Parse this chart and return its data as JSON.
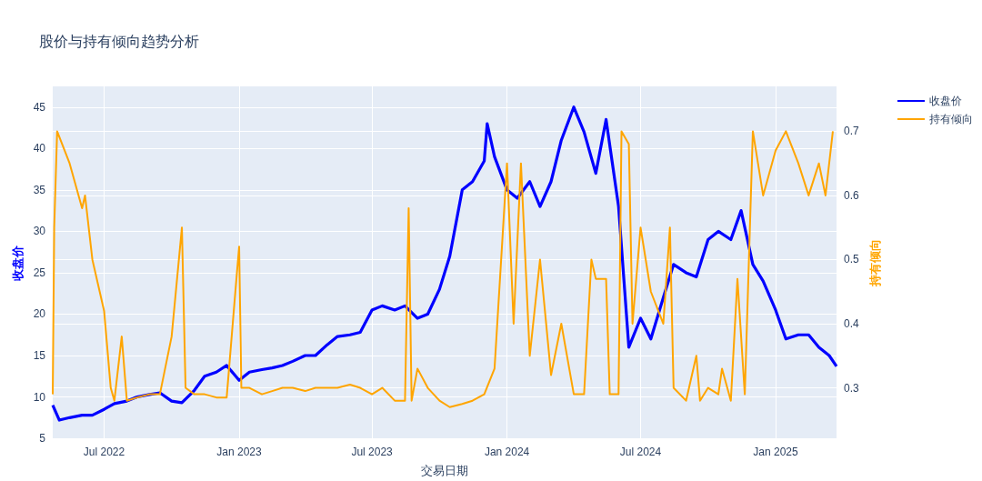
{
  "chart_data": {
    "type": "line",
    "title": "股价与持有倾向趋势分析",
    "xlabel": "交易日期",
    "ylabel": "收盘价",
    "y2label": "持有倾向",
    "xlim": [
      "2022-04-22",
      "2025-03-25"
    ],
    "xticks": [
      {
        "value": "2022-07-01",
        "label": "Jul 2022"
      },
      {
        "value": "2023-01-01",
        "label": "Jan 2023"
      },
      {
        "value": "2023-07-01",
        "label": "Jul 2023"
      },
      {
        "value": "2024-01-01",
        "label": "Jan 2024"
      },
      {
        "value": "2024-07-01",
        "label": "Jul 2024"
      },
      {
        "value": "2025-01-01",
        "label": "Jan 2025"
      }
    ],
    "ylim": [
      4.9,
      47.5
    ],
    "yticks": [
      5,
      10,
      15,
      20,
      25,
      30,
      35,
      40,
      45
    ],
    "y2lim": [
      0.22,
      0.77
    ],
    "y2ticks": [
      0.3,
      0.4,
      0.5,
      0.6,
      0.7
    ],
    "grid": true,
    "legend": "top right",
    "marker": "none",
    "line_style": "solid",
    "series": [
      {
        "name": "收盘价",
        "color": "#0000ff",
        "x": [
          "2022-04-22",
          "2022-05-01",
          "2022-05-15",
          "2022-06-01",
          "2022-06-15",
          "2022-07-01",
          "2022-07-15",
          "2022-08-01",
          "2022-08-15",
          "2022-09-01",
          "2022-09-15",
          "2022-10-01",
          "2022-10-15",
          "2022-11-01",
          "2022-11-15",
          "2022-12-01",
          "2022-12-15",
          "2023-01-01",
          "2023-01-15",
          "2023-02-01",
          "2023-02-15",
          "2023-03-01",
          "2023-03-15",
          "2023-04-01",
          "2023-04-15",
          "2023-05-01",
          "2023-05-15",
          "2023-06-01",
          "2023-06-15",
          "2023-07-01",
          "2023-07-15",
          "2023-08-01",
          "2023-08-15",
          "2023-09-01",
          "2023-09-15",
          "2023-10-01",
          "2023-10-15",
          "2023-11-01",
          "2023-11-15",
          "2023-12-01",
          "2023-12-05",
          "2023-12-15",
          "2024-01-01",
          "2024-01-15",
          "2024-02-01",
          "2024-02-15",
          "2024-03-01",
          "2024-03-15",
          "2024-04-01",
          "2024-04-15",
          "2024-05-01",
          "2024-05-15",
          "2024-06-01",
          "2024-06-15",
          "2024-07-01",
          "2024-07-15",
          "2024-08-01",
          "2024-08-15",
          "2024-09-01",
          "2024-09-15",
          "2024-10-01",
          "2024-10-15",
          "2024-11-01",
          "2024-11-15",
          "2024-12-01",
          "2024-12-15",
          "2025-01-01",
          "2025-01-15",
          "2025-02-01",
          "2025-02-15",
          "2025-03-01",
          "2025-03-15",
          "2025-03-25"
        ],
        "values": [
          9,
          7.2,
          7.5,
          7.8,
          7.8,
          8.5,
          9.2,
          9.5,
          10,
          10.3,
          10.5,
          9.5,
          9.3,
          10.8,
          12.5,
          13,
          13.8,
          12,
          13,
          13.3,
          13.5,
          13.8,
          14.3,
          15,
          15,
          16.3,
          17.3,
          17.5,
          17.8,
          20.5,
          21,
          20.5,
          21,
          19.5,
          20,
          23,
          27,
          35,
          36,
          38.5,
          43,
          39,
          35,
          34,
          36,
          33,
          36,
          41,
          45,
          42,
          37,
          43.5,
          33,
          16,
          19.5,
          17,
          22,
          26,
          25,
          24.5,
          29,
          30,
          29,
          32.5,
          26,
          24,
          20.5,
          17,
          17.5,
          17.5,
          16,
          15,
          13.7
        ]
      },
      {
        "name": "持有倾向",
        "color": "#ffa500",
        "axis": "y2",
        "x": [
          "2022-04-22",
          "2022-04-24",
          "2022-04-28",
          "2022-05-15",
          "2022-06-01",
          "2022-06-05",
          "2022-06-15",
          "2022-07-01",
          "2022-07-10",
          "2022-07-15",
          "2022-07-25",
          "2022-08-01",
          "2022-08-15",
          "2022-09-01",
          "2022-09-15",
          "2022-10-01",
          "2022-10-15",
          "2022-10-20",
          "2022-11-01",
          "2022-11-15",
          "2022-12-01",
          "2022-12-15",
          "2022-12-29",
          "2023-01-01",
          "2023-01-04",
          "2023-01-15",
          "2023-02-01",
          "2023-02-15",
          "2023-03-01",
          "2023-03-15",
          "2023-04-01",
          "2023-04-15",
          "2023-05-01",
          "2023-05-15",
          "2023-06-01",
          "2023-06-15",
          "2023-07-01",
          "2023-07-15",
          "2023-08-01",
          "2023-08-15",
          "2023-08-20",
          "2023-08-24",
          "2023-09-01",
          "2023-09-15",
          "2023-10-01",
          "2023-10-15",
          "2023-11-01",
          "2023-11-15",
          "2023-12-01",
          "2023-12-15",
          "2024-01-01",
          "2024-01-10",
          "2024-01-20",
          "2024-02-01",
          "2024-02-15",
          "2024-03-01",
          "2024-03-15",
          "2024-04-01",
          "2024-04-15",
          "2024-04-25",
          "2024-05-01",
          "2024-05-15",
          "2024-05-20",
          "2024-06-01",
          "2024-06-05",
          "2024-06-15",
          "2024-06-20",
          "2024-07-01",
          "2024-07-15",
          "2024-08-01",
          "2024-08-10",
          "2024-08-15",
          "2024-09-01",
          "2024-09-15",
          "2024-09-20",
          "2024-10-01",
          "2024-10-15",
          "2024-10-20",
          "2024-11-01",
          "2024-11-10",
          "2024-11-20",
          "2024-12-01",
          "2024-12-15",
          "2025-01-01",
          "2025-01-15",
          "2025-02-01",
          "2025-02-15",
          "2025-03-01",
          "2025-03-10",
          "2025-03-20"
        ],
        "values": [
          0.29,
          0.55,
          0.7,
          0.65,
          0.58,
          0.6,
          0.5,
          0.42,
          0.3,
          0.28,
          0.38,
          0.28,
          0.285,
          0.29,
          0.29,
          0.38,
          0.55,
          0.3,
          0.29,
          0.29,
          0.285,
          0.285,
          0.48,
          0.52,
          0.3,
          0.3,
          0.29,
          0.295,
          0.3,
          0.3,
          0.295,
          0.3,
          0.3,
          0.3,
          0.305,
          0.3,
          0.29,
          0.3,
          0.28,
          0.28,
          0.58,
          0.28,
          0.33,
          0.3,
          0.28,
          0.27,
          0.275,
          0.28,
          0.29,
          0.33,
          0.65,
          0.4,
          0.65,
          0.35,
          0.5,
          0.32,
          0.4,
          0.29,
          0.29,
          0.5,
          0.47,
          0.47,
          0.29,
          0.29,
          0.7,
          0.68,
          0.4,
          0.55,
          0.45,
          0.4,
          0.55,
          0.3,
          0.28,
          0.35,
          0.28,
          0.3,
          0.29,
          0.33,
          0.28,
          0.47,
          0.29,
          0.7,
          0.6,
          0.67,
          0.7,
          0.65,
          0.6,
          0.65,
          0.6,
          0.7
        ]
      }
    ]
  }
}
